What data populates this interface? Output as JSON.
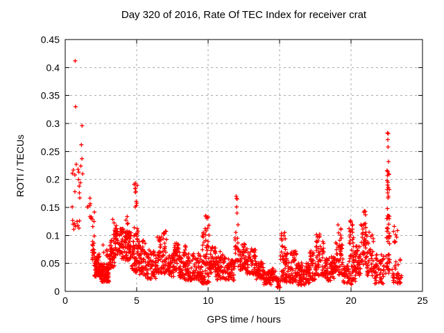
{
  "chart_data": {
    "type": "scatter",
    "title": "Day 320 of 2016, Rate Of TEC Index for receiver crat",
    "xlabel": "GPS time / hours",
    "ylabel": "ROTI / TECUs",
    "xlim": [
      0,
      25
    ],
    "ylim": [
      0,
      0.45
    ],
    "xticks": {
      "values": [
        0,
        5,
        10,
        15,
        20,
        25
      ],
      "labels": [
        "0",
        "5",
        "10",
        "15",
        "20",
        "25"
      ]
    },
    "yticks": {
      "values": [
        0,
        0.05,
        0.1,
        0.15,
        0.2,
        0.25,
        0.3,
        0.35,
        0.4,
        0.45
      ],
      "labels": [
        "0",
        "0.05",
        "0.1",
        "0.15",
        "0.2",
        "0.25",
        "0.3",
        "0.35",
        "0.4",
        "0.45"
      ]
    },
    "grid": "dashed-gray-both-axes",
    "legend": "none",
    "marker": {
      "shape": "plus",
      "size": 7
    },
    "colors": {
      "marker": "#ff0000",
      "grid": "#a8a8a8",
      "axis": "#000000",
      "background": "#ffffff"
    },
    "seed": 1320,
    "points": [
      [
        0.49,
        0.151
      ],
      [
        0.7,
        0.412
      ],
      [
        0.73,
        0.33
      ],
      [
        1.18,
        0.296
      ],
      [
        1.13,
        0.262
      ],
      [
        1.17,
        0.237
      ],
      [
        0.77,
        0.227
      ],
      [
        1.09,
        0.224
      ],
      [
        0.57,
        0.217
      ],
      [
        0.9,
        0.218
      ],
      [
        0.5,
        0.211
      ],
      [
        0.95,
        0.213
      ],
      [
        1.22,
        0.21
      ],
      [
        0.68,
        0.208
      ],
      [
        0.93,
        0.2
      ],
      [
        1.06,
        0.194
      ],
      [
        0.98,
        0.188
      ],
      [
        0.68,
        0.178
      ],
      [
        0.99,
        0.176
      ],
      [
        1.02,
        0.167
      ],
      [
        0.52,
        0.127
      ],
      [
        0.65,
        0.121
      ],
      [
        0.83,
        0.125
      ],
      [
        0.96,
        0.113
      ],
      [
        0.72,
        0.116
      ],
      [
        0.6,
        0.111
      ],
      [
        0.88,
        0.118
      ],
      [
        1.0,
        0.126
      ],
      [
        0.56,
        0.12
      ],
      [
        11.96,
        0.17
      ],
      [
        12.0,
        0.166
      ],
      [
        12.03,
        0.165
      ],
      [
        11.99,
        0.151
      ],
      [
        12.02,
        0.14
      ],
      [
        22.55,
        0.283
      ],
      [
        22.6,
        0.282
      ],
      [
        22.57,
        0.271
      ],
      [
        22.59,
        0.258
      ],
      [
        22.62,
        0.232
      ],
      [
        22.52,
        0.216
      ],
      [
        22.57,
        0.214
      ],
      [
        22.63,
        0.21
      ],
      [
        22.55,
        0.207
      ],
      [
        22.66,
        0.209
      ],
      [
        22.53,
        0.198
      ],
      [
        22.58,
        0.195
      ],
      [
        22.56,
        0.19
      ],
      [
        22.6,
        0.186
      ],
      [
        22.54,
        0.182
      ],
      [
        22.68,
        0.182
      ],
      [
        22.57,
        0.176
      ],
      [
        22.61,
        0.17
      ],
      [
        22.59,
        0.167
      ],
      [
        22.55,
        0.148
      ],
      [
        22.56,
        0.135
      ],
      [
        22.64,
        0.12
      ],
      [
        22.58,
        0.112
      ],
      [
        22.66,
        0.104
      ],
      [
        22.7,
        0.085
      ]
    ],
    "bands": [
      [
        1.55,
        1.78,
        0.148,
        0.168,
        5,
        1
      ],
      [
        1.7,
        2.05,
        0.124,
        0.145,
        6,
        1
      ],
      [
        1.88,
        2.1,
        0.045,
        0.118,
        22,
        1
      ],
      [
        2.05,
        2.45,
        0.026,
        0.068,
        55,
        1.4
      ],
      [
        2.45,
        3.1,
        0.017,
        0.05,
        90,
        1.4
      ],
      [
        2.6,
        3.1,
        0.054,
        0.086,
        8,
        1
      ],
      [
        3.1,
        3.45,
        0.042,
        0.092,
        40,
        1
      ],
      [
        3.28,
        3.6,
        0.094,
        0.13,
        12,
        1
      ],
      [
        3.45,
        4.1,
        0.058,
        0.112,
        65,
        1
      ],
      [
        4.1,
        4.62,
        0.052,
        0.108,
        55,
        1
      ],
      [
        4.18,
        4.45,
        0.12,
        0.134,
        4,
        1
      ],
      [
        4.62,
        5.1,
        0.034,
        0.118,
        60,
        1.3
      ],
      [
        4.8,
        5.06,
        0.176,
        0.196,
        9,
        1
      ],
      [
        4.85,
        5.06,
        0.142,
        0.168,
        4,
        1
      ],
      [
        5.1,
        5.6,
        0.03,
        0.092,
        50,
        1.2
      ],
      [
        5.6,
        6.4,
        0.021,
        0.074,
        70,
        1.3
      ],
      [
        6.4,
        7.2,
        0.032,
        0.1,
        70,
        1.3
      ],
      [
        6.8,
        7.06,
        0.096,
        0.112,
        5,
        1
      ],
      [
        7.2,
        7.58,
        0.026,
        0.066,
        38,
        1.2
      ],
      [
        7.55,
        7.98,
        0.038,
        0.092,
        40,
        1.2
      ],
      [
        7.95,
        9.55,
        0.02,
        0.07,
        150,
        1.4
      ],
      [
        8.28,
        8.52,
        0.068,
        0.084,
        5,
        1
      ],
      [
        9.55,
        10.1,
        0.014,
        0.118,
        68,
        1.6
      ],
      [
        9.78,
        10.06,
        0.118,
        0.136,
        6,
        1
      ],
      [
        10.1,
        10.55,
        0.032,
        0.08,
        42,
        1.2
      ],
      [
        10.55,
        11.86,
        0.02,
        0.062,
        110,
        1.3
      ],
      [
        10.82,
        11.02,
        0.06,
        0.073,
        4,
        1
      ],
      [
        11.88,
        12.1,
        0.052,
        0.122,
        18,
        1.2
      ],
      [
        12.1,
        12.7,
        0.038,
        0.086,
        55,
        1.2
      ],
      [
        12.7,
        13.32,
        0.03,
        0.076,
        55,
        1.2
      ],
      [
        13.32,
        13.9,
        0.02,
        0.053,
        50,
        1.2
      ],
      [
        13.9,
        14.42,
        0.012,
        0.037,
        42,
        1.2
      ],
      [
        14.4,
        14.72,
        0.018,
        0.043,
        24,
        1
      ],
      [
        14.7,
        15.06,
        0.006,
        0.025,
        18,
        1
      ],
      [
        15.06,
        15.42,
        0.018,
        0.106,
        45,
        1.5
      ],
      [
        15.42,
        16.2,
        0.016,
        0.073,
        75,
        1.3
      ],
      [
        16.2,
        17.12,
        0.011,
        0.051,
        85,
        1.3
      ],
      [
        17.1,
        17.56,
        0.02,
        0.076,
        45,
        1.2
      ],
      [
        17.55,
        18.12,
        0.028,
        0.106,
        50,
        1.3
      ],
      [
        18.1,
        18.9,
        0.019,
        0.063,
        70,
        1.2
      ],
      [
        18.88,
        19.45,
        0.028,
        0.092,
        48,
        1.2
      ],
      [
        19.0,
        19.42,
        0.094,
        0.122,
        6,
        1
      ],
      [
        19.45,
        19.86,
        0.014,
        0.046,
        32,
        1
      ],
      [
        19.85,
        20.3,
        0.012,
        0.116,
        55,
        1.5
      ],
      [
        19.9,
        20.16,
        0.114,
        0.131,
        5,
        1
      ],
      [
        20.3,
        20.7,
        0.028,
        0.082,
        40,
        1.2
      ],
      [
        20.68,
        21.1,
        0.048,
        0.126,
        40,
        1.3
      ],
      [
        20.84,
        21.02,
        0.128,
        0.146,
        4,
        1
      ],
      [
        21.1,
        21.6,
        0.028,
        0.106,
        42,
        1.4
      ],
      [
        21.6,
        22.32,
        0.014,
        0.066,
        55,
        1.3
      ],
      [
        22.4,
        22.8,
        0.032,
        0.07,
        18,
        1
      ],
      [
        22.45,
        22.76,
        0.084,
        0.136,
        14,
        1
      ],
      [
        22.85,
        23.3,
        0.014,
        0.053,
        20,
        1
      ],
      [
        22.95,
        23.26,
        0.086,
        0.128,
        8,
        1
      ],
      [
        23.25,
        23.58,
        0.013,
        0.036,
        12,
        1
      ],
      [
        23.4,
        23.56,
        0.054,
        0.067,
        2,
        1
      ]
    ]
  }
}
